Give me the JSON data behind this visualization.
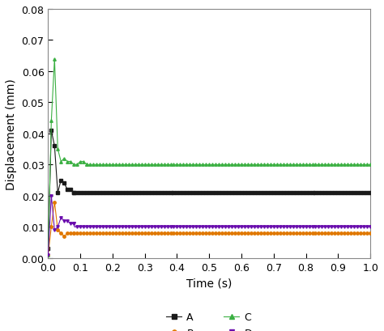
{
  "title": "",
  "xlabel": "Time (s)",
  "ylabel": "Displacement (mm)",
  "xlim": [
    0,
    1.0
  ],
  "ylim": [
    0.0,
    0.08
  ],
  "yticks": [
    0.0,
    0.01,
    0.02,
    0.03,
    0.04,
    0.05,
    0.06,
    0.07,
    0.08
  ],
  "xticks": [
    0.0,
    0.1,
    0.2,
    0.3,
    0.4,
    0.5,
    0.6,
    0.7,
    0.8,
    0.9,
    1.0
  ],
  "series": {
    "A": {
      "color": "#1a1a1a",
      "marker": "s",
      "markersize": 2.5,
      "linewidth": 0.8,
      "steady": 0.021,
      "transient": [
        [
          0.0,
          0.003
        ],
        [
          0.01,
          0.041
        ],
        [
          0.02,
          0.036
        ],
        [
          0.03,
          0.021
        ],
        [
          0.04,
          0.025
        ],
        [
          0.05,
          0.024
        ],
        [
          0.06,
          0.022
        ],
        [
          0.07,
          0.022
        ],
        [
          0.08,
          0.021
        ]
      ]
    },
    "B": {
      "color": "#e07800",
      "marker": "o",
      "markersize": 2.5,
      "linewidth": 0.8,
      "steady": 0.008,
      "transient": [
        [
          0.0,
          0.001
        ],
        [
          0.01,
          0.01
        ],
        [
          0.02,
          0.018
        ],
        [
          0.03,
          0.009
        ],
        [
          0.04,
          0.008
        ],
        [
          0.05,
          0.007
        ],
        [
          0.06,
          0.008
        ],
        [
          0.07,
          0.008
        ],
        [
          0.08,
          0.008
        ]
      ]
    },
    "C": {
      "color": "#3cb043",
      "marker": "^",
      "markersize": 2.5,
      "linewidth": 0.8,
      "steady": 0.03,
      "transient": [
        [
          0.0,
          0.001
        ],
        [
          0.01,
          0.044
        ],
        [
          0.02,
          0.064
        ],
        [
          0.03,
          0.035
        ],
        [
          0.04,
          0.031
        ],
        [
          0.05,
          0.032
        ],
        [
          0.06,
          0.031
        ],
        [
          0.07,
          0.031
        ],
        [
          0.08,
          0.03
        ],
        [
          0.09,
          0.03
        ],
        [
          0.1,
          0.031
        ],
        [
          0.11,
          0.031
        ],
        [
          0.12,
          0.03
        ]
      ]
    },
    "D": {
      "color": "#6a0dad",
      "marker": "v",
      "markersize": 2.5,
      "linewidth": 0.8,
      "steady": 0.01,
      "transient": [
        [
          0.0,
          0.001
        ],
        [
          0.01,
          0.02
        ],
        [
          0.02,
          0.009
        ],
        [
          0.03,
          0.01
        ],
        [
          0.04,
          0.013
        ],
        [
          0.05,
          0.012
        ],
        [
          0.06,
          0.012
        ],
        [
          0.07,
          0.011
        ],
        [
          0.08,
          0.011
        ]
      ]
    }
  },
  "background_color": "#ffffff",
  "dt_steady": 0.002,
  "marker_every_trans": 1,
  "marker_every_steady": 5
}
